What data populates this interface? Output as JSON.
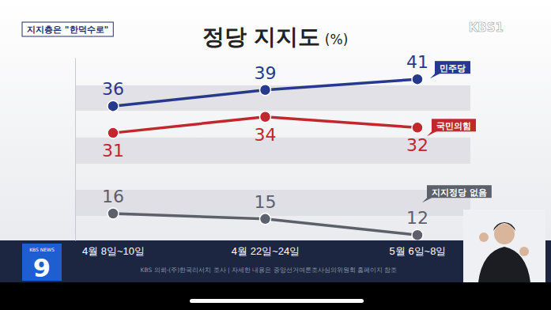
{
  "chart_data": {
    "type": "line",
    "title": "정당 지지도 (%)",
    "categories": [
      "4월 8일~10일",
      "4월 22일~24일",
      "5월 6일~8일"
    ],
    "series": [
      {
        "name": "민주당",
        "color": "#27398c",
        "values": [
          36,
          39,
          41
        ]
      },
      {
        "name": "국민의힘",
        "color": "#c1272d",
        "values": [
          31,
          34,
          32
        ]
      },
      {
        "name": "지지정당 없음",
        "color": "#5b606b",
        "values": [
          16,
          15,
          12
        ]
      }
    ],
    "ylim": [
      11,
      45
    ],
    "tick_labels": "x",
    "data_labels": true,
    "marker": "circle",
    "grid": false
  },
  "overlay": {
    "tag": "지지층은 \"한덕수로\"",
    "channel": "KBS1",
    "source": "KBS 의뢰-(주)한국리서치 조사 | 자세한 내용은 중앙선거여론조사심의위원회 홈페이지 참조",
    "news_brand": "KBS NEWS",
    "news_number": "9"
  }
}
